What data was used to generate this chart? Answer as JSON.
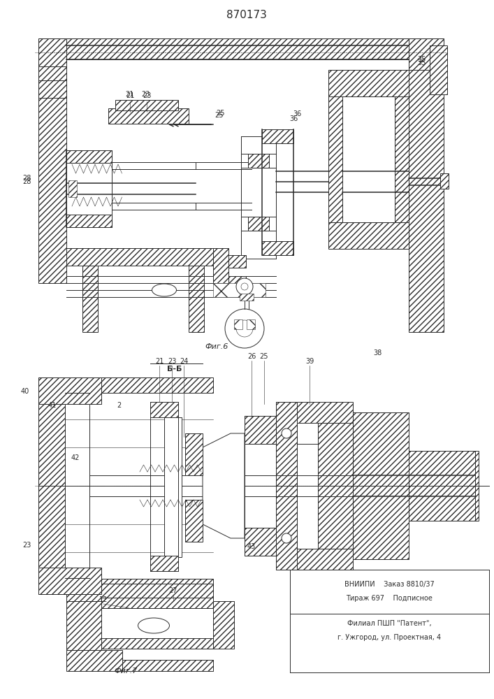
{
  "title": "870173",
  "fig6_label": "Фиг.6",
  "fig7_label": "Фиг.7",
  "section_label": "Б-Б",
  "footer": [
    "ВНИИПИ    Заказ 8810/37",
    "Тираж 697    Подписное",
    "Филиал ПШП \"Патент\",",
    "г. Ужгород, ул. Проектная, 4"
  ],
  "bg": "#f5f5f0",
  "lc": "#2a2a2a",
  "hatch_lc": "#2a2a2a"
}
